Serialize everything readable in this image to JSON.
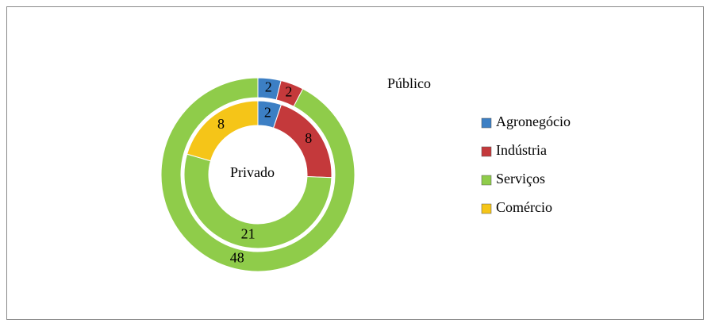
{
  "chart_data": {
    "type": "doughnut",
    "categories": [
      "Agronegócio",
      "Indústria",
      "Serviços",
      "Comércio"
    ],
    "colors": [
      "#3c7fc4",
      "#c4393b",
      "#8fcc4a",
      "#f5c518"
    ],
    "series": [
      {
        "name": "Público",
        "values": [
          2,
          2,
          48,
          0
        ]
      },
      {
        "name": "Privado",
        "values": [
          2,
          8,
          21,
          8
        ]
      }
    ],
    "legend": "right"
  }
}
